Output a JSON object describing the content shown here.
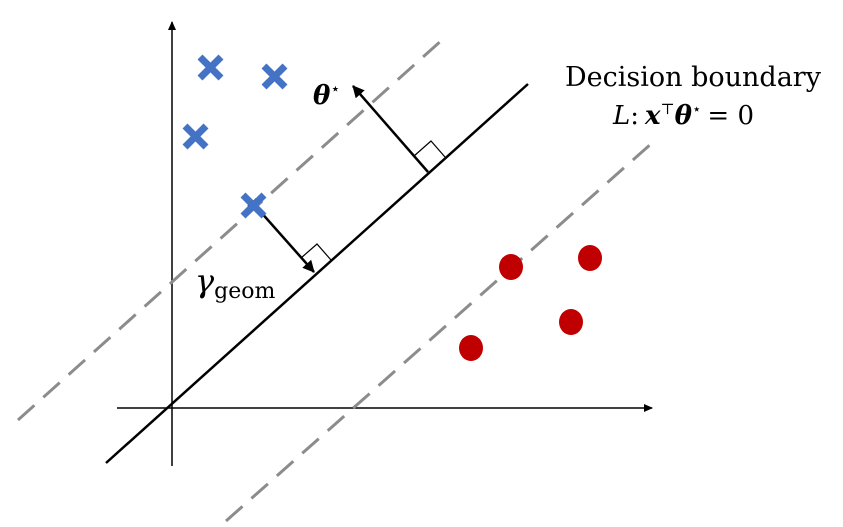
{
  "diagram": {
    "boundary_title": "Decision boundary",
    "boundary_equation": {
      "L": "L",
      "colon": ":",
      "x": "x",
      "transpose": "⊤",
      "theta": "θ",
      "star": "⋆",
      "equals_zero": "= 0"
    },
    "theta_label": {
      "theta": "θ",
      "star": "⋆"
    },
    "gamma_label": {
      "gamma": "γ",
      "subscript": "geom"
    },
    "colors": {
      "class_cross": "#4472c4",
      "class_circle": "#c00000",
      "margin_line": "#8c8c8c",
      "boundary_line": "#000000",
      "axis": "#000000"
    },
    "class_cross_count": 4,
    "class_circle_count": 4
  }
}
